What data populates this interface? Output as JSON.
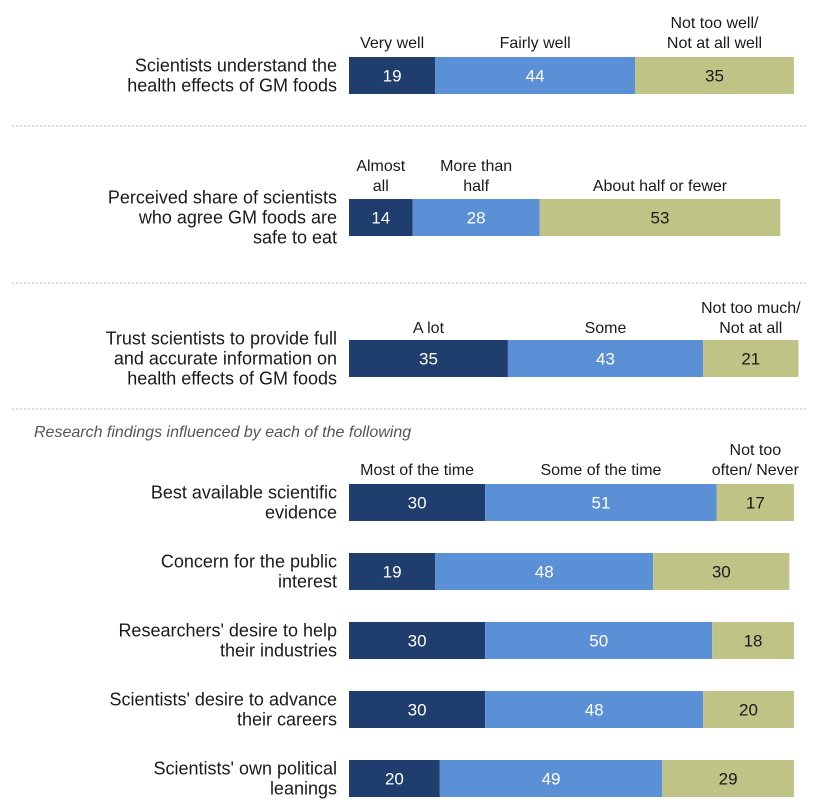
{
  "chart_data": {
    "type": "bar",
    "orientation": "horizontal",
    "stacked": true,
    "xlim": [
      0,
      100
    ],
    "colors": {
      "dark": "#1f3d6d",
      "mid": "#5b8fd6",
      "light": "#bfc486"
    },
    "label_colors": {
      "dark": "#ffffff",
      "mid": "#ffffff",
      "light": "#1a1a1a"
    },
    "sections": [
      {
        "headers": [
          "Very well",
          "Fairly well",
          "Not too well/\nNot at all well"
        ],
        "rows": [
          {
            "label": "Scientists understand the\nhealth effects of GM foods",
            "values": [
              19,
              44,
              35
            ]
          }
        ]
      },
      {
        "headers": [
          "Almost\nall",
          "More than\nhalf",
          "About half or fewer"
        ],
        "rows": [
          {
            "label": "Perceived share of scientists\nwho agree GM foods are\nsafe to eat",
            "values": [
              14,
              28,
              53
            ]
          }
        ]
      },
      {
        "headers": [
          "A lot",
          "Some",
          "Not too much/\nNot at all"
        ],
        "rows": [
          {
            "label": "Trust scientists to provide full\nand accurate information on\nhealth effects of GM foods",
            "values": [
              35,
              43,
              21
            ]
          }
        ]
      },
      {
        "subtitle": "Research findings influenced by each of the following",
        "headers": [
          "Most of the time",
          "Some of the time",
          "Not too\noften/ Never"
        ],
        "rows": [
          {
            "label": "Best available scientific\nevidence",
            "values": [
              30,
              51,
              17
            ]
          },
          {
            "label": "Concern for the public\ninterest",
            "values": [
              19,
              48,
              30
            ]
          },
          {
            "label": "Researchers' desire to help\ntheir industries",
            "values": [
              30,
              50,
              18
            ]
          },
          {
            "label": "Scientists' desire to advance\ntheir careers",
            "values": [
              30,
              48,
              20
            ]
          },
          {
            "label": "Scientists' own political\nleanings",
            "values": [
              20,
              49,
              29
            ]
          }
        ]
      }
    ]
  }
}
